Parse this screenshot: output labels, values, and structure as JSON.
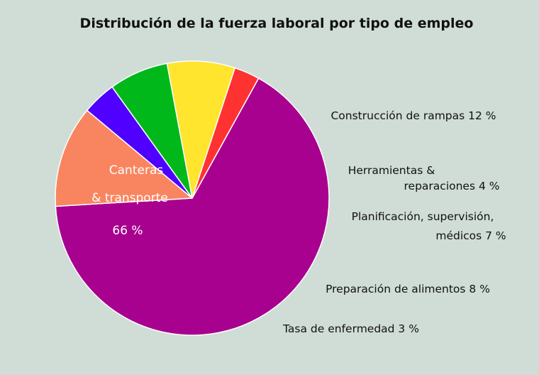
{
  "chart_data": {
    "type": "pie",
    "title": "Distribución de la fuerza laboral por tipo de empleo",
    "slices": [
      {
        "label_lines": [
          "Canteras",
          "& transporte",
          "66 %"
        ],
        "value": 66,
        "color": "#a8008f"
      },
      {
        "label_lines": [
          "Construcción de rampas 12 %"
        ],
        "value": 12,
        "color": "#f98560"
      },
      {
        "label_lines": [
          "Herramientas &",
          "reparaciones 4 %"
        ],
        "value": 4,
        "color": "#4f00ff"
      },
      {
        "label_lines": [
          "Planificación, supervisión,",
          "médicos 7 %"
        ],
        "value": 7,
        "color": "#00b81a"
      },
      {
        "label_lines": [
          "Preparación de alimentos 8 %"
        ],
        "value": 8,
        "color": "#ffe52e"
      },
      {
        "label_lines": [
          "Tasa de enfermedad 3 %"
        ],
        "value": 3,
        "color": "#ff3232"
      }
    ]
  }
}
